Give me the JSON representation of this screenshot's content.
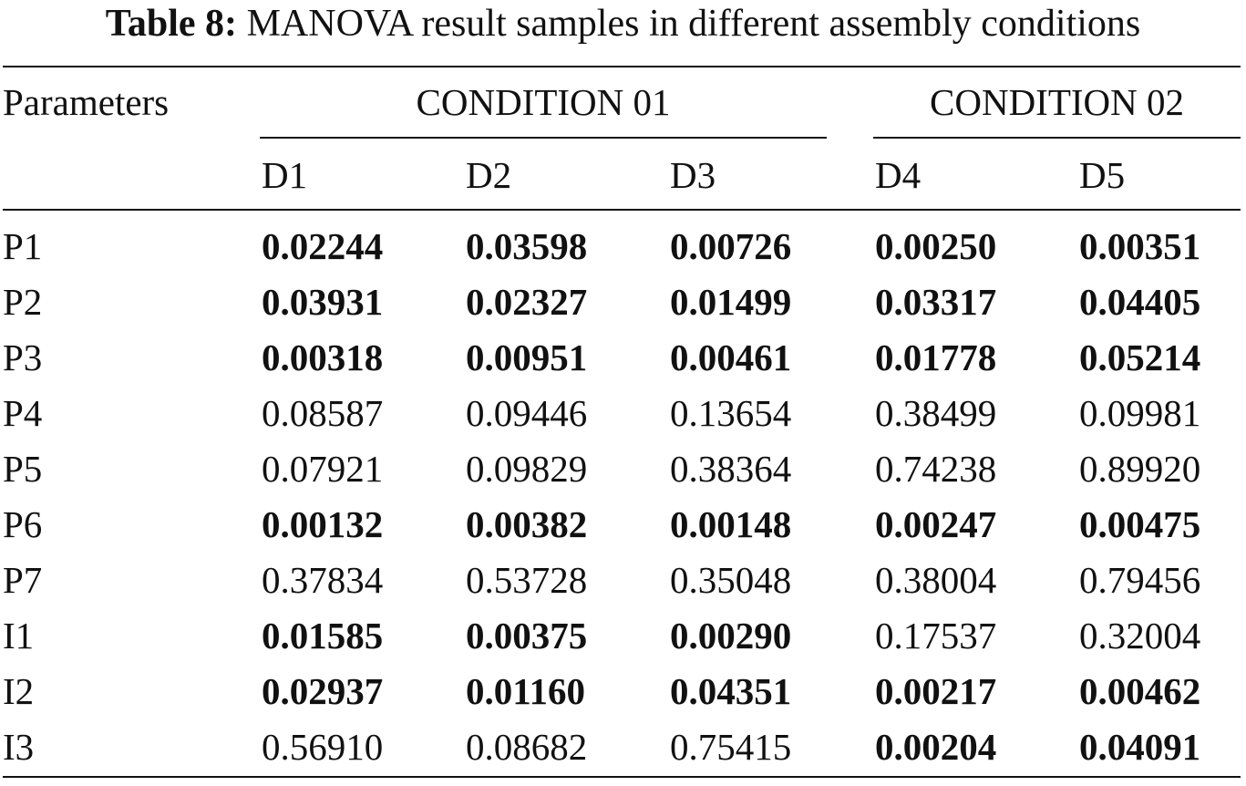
{
  "caption": {
    "label": "Table 8:",
    "text": "MANOVA result samples in different assembly conditions"
  },
  "header": {
    "parameters_label": "Parameters",
    "groups": [
      "CONDITION 01",
      "CONDITION 02"
    ],
    "columns": [
      "D1",
      "D2",
      "D3",
      "D4",
      "D5"
    ]
  },
  "rows": [
    {
      "label": "P1",
      "values": [
        "0.02244",
        "0.03598",
        "0.00726",
        "0.00250",
        "0.00351"
      ],
      "bold": [
        true,
        true,
        true,
        true,
        true
      ]
    },
    {
      "label": "P2",
      "values": [
        "0.03931",
        "0.02327",
        "0.01499",
        "0.03317",
        "0.04405"
      ],
      "bold": [
        true,
        true,
        true,
        true,
        true
      ]
    },
    {
      "label": "P3",
      "values": [
        "0.00318",
        "0.00951",
        "0.00461",
        "0.01778",
        "0.05214"
      ],
      "bold": [
        true,
        true,
        true,
        true,
        true
      ]
    },
    {
      "label": "P4",
      "values": [
        "0.08587",
        "0.09446",
        "0.13654",
        "0.38499",
        "0.09981"
      ],
      "bold": [
        false,
        false,
        false,
        false,
        false
      ]
    },
    {
      "label": "P5",
      "values": [
        "0.07921",
        "0.09829",
        "0.38364",
        "0.74238",
        "0.89920"
      ],
      "bold": [
        false,
        false,
        false,
        false,
        false
      ]
    },
    {
      "label": "P6",
      "values": [
        "0.00132",
        "0.00382",
        "0.00148",
        "0.00247",
        "0.00475"
      ],
      "bold": [
        true,
        true,
        true,
        true,
        true
      ]
    },
    {
      "label": "P7",
      "values": [
        "0.37834",
        "0.53728",
        "0.35048",
        "0.38004",
        "0.79456"
      ],
      "bold": [
        false,
        false,
        false,
        false,
        false
      ]
    },
    {
      "label": "I1",
      "values": [
        "0.01585",
        "0.00375",
        "0.00290",
        "0.17537",
        "0.32004"
      ],
      "bold": [
        true,
        true,
        true,
        false,
        false
      ]
    },
    {
      "label": "I2",
      "values": [
        "0.02937",
        "0.01160",
        "0.04351",
        "0.00217",
        "0.00462"
      ],
      "bold": [
        true,
        true,
        true,
        true,
        true
      ]
    },
    {
      "label": "I3",
      "values": [
        "0.56910",
        "0.08682",
        "0.75415",
        "0.00204",
        "0.04091"
      ],
      "bold": [
        false,
        false,
        false,
        true,
        true
      ]
    }
  ]
}
